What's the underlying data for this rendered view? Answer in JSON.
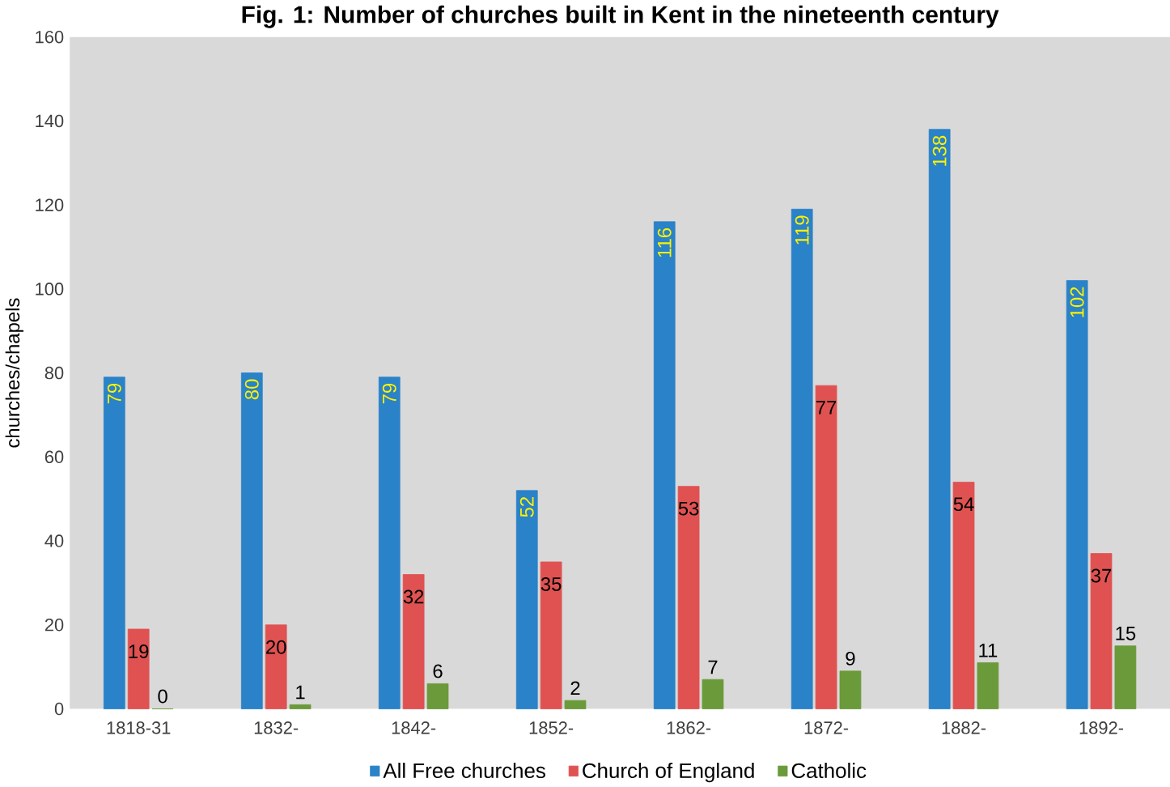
{
  "chart_data": {
    "type": "bar",
    "title": "Fig. 1: Number of churches built in Kent in the nineteenth century",
    "ylabel": "churches/chapels",
    "categories": [
      "1818-31",
      "1832-",
      "1842-",
      "1852-",
      "1862-",
      "1872-",
      "1882-",
      "1892-"
    ],
    "series": [
      {
        "name": "All Free churches",
        "color": "#2a82c8",
        "values": [
          79,
          80,
          79,
          52,
          116,
          119,
          138,
          102
        ]
      },
      {
        "name": "Church of England",
        "color": "#e05252",
        "values": [
          19,
          20,
          32,
          35,
          53,
          77,
          54,
          37
        ]
      },
      {
        "name": "Catholic",
        "color": "#6a9a3a",
        "values": [
          0,
          1,
          6,
          2,
          7,
          9,
          11,
          15
        ]
      }
    ],
    "ylim": [
      0,
      160
    ],
    "yticks": [
      0,
      20,
      40,
      60,
      80,
      100,
      120,
      140,
      160
    ],
    "data_labels": true,
    "legend": "bottom",
    "grid": false
  }
}
